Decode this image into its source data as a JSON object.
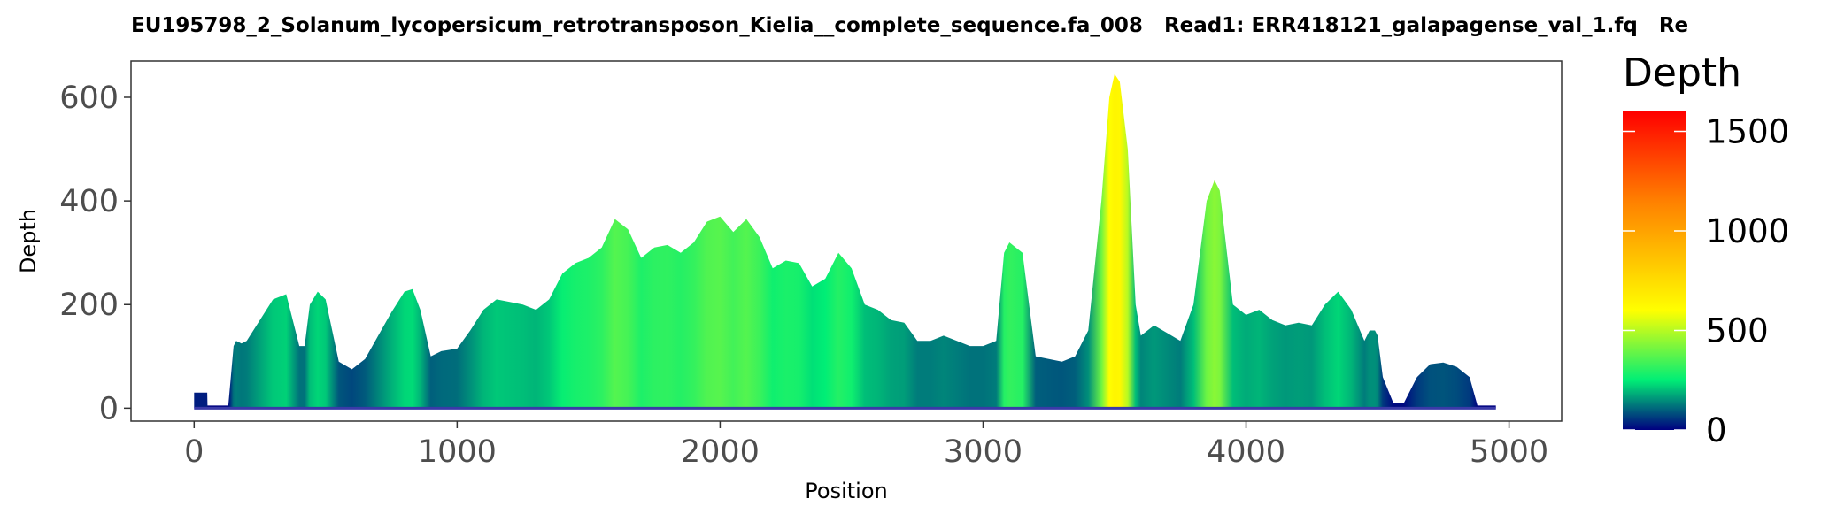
{
  "chart_data": {
    "type": "area",
    "title": "EU195798_2_Solanum_lycopersicum_retrotransposon_Kielia__complete_sequence.fa_008   Read1: ERR418121_galapagense_val_1.fq   Re",
    "xlabel": "Position",
    "ylabel": "Depth",
    "xlim": [
      -240,
      5200
    ],
    "ylim": [
      -25,
      670
    ],
    "x_ticks": [
      0,
      1000,
      2000,
      3000,
      4000,
      5000
    ],
    "x_tick_labels": [
      "0",
      "1000",
      "2000",
      "3000",
      "4000",
      "5000"
    ],
    "y_ticks": [
      0,
      200,
      400,
      600
    ],
    "y_tick_labels": [
      "0",
      "200",
      "400",
      "600"
    ],
    "grid": false,
    "legend": {
      "title": "Depth",
      "placement": "right",
      "ticks": [
        0,
        500,
        1000,
        1500
      ],
      "tick_labels": [
        "0",
        "500",
        "1000",
        "1500"
      ],
      "range": [
        0,
        1600
      ],
      "colors": [
        "#000080",
        "#00ee76",
        "#ffff00",
        "#ff8000",
        "#ff0000"
      ],
      "stops": [
        0,
        250,
        600,
        1150,
        1600
      ]
    },
    "series": [
      {
        "x": [
          0,
          50,
          51,
          130,
          150,
          160,
          180,
          200,
          250,
          300,
          350,
          400,
          420,
          440,
          470,
          500,
          550,
          600,
          650,
          700,
          750,
          800,
          830,
          860,
          900,
          940,
          1000,
          1050,
          1100,
          1150,
          1200,
          1250,
          1300,
          1350,
          1400,
          1450,
          1500,
          1550,
          1600,
          1650,
          1700,
          1750,
          1800,
          1850,
          1900,
          1950,
          2000,
          2050,
          2100,
          2150,
          2200,
          2250,
          2300,
          2350,
          2400,
          2450,
          2500,
          2550,
          2600,
          2650,
          2700,
          2750,
          2800,
          2850,
          2900,
          2950,
          3000,
          3050,
          3080,
          3100,
          3150,
          3200,
          3250,
          3300,
          3350,
          3400,
          3450,
          3480,
          3500,
          3520,
          3550,
          3580,
          3600,
          3650,
          3700,
          3750,
          3800,
          3850,
          3880,
          3900,
          3950,
          4000,
          4050,
          4100,
          4150,
          4200,
          4250,
          4300,
          4350,
          4400,
          4450,
          4470,
          4490,
          4500,
          4520,
          4560,
          4600,
          4650,
          4700,
          4750,
          4800,
          4850,
          4880,
          4950
        ],
        "values": [
          30,
          30,
          5,
          5,
          120,
          130,
          125,
          130,
          170,
          210,
          220,
          120,
          120,
          200,
          225,
          210,
          90,
          75,
          95,
          140,
          185,
          225,
          230,
          190,
          100,
          110,
          115,
          150,
          190,
          210,
          205,
          200,
          190,
          210,
          260,
          280,
          290,
          310,
          365,
          345,
          290,
          310,
          315,
          300,
          320,
          360,
          370,
          340,
          365,
          330,
          270,
          285,
          280,
          235,
          250,
          300,
          270,
          200,
          190,
          170,
          165,
          130,
          130,
          140,
          130,
          120,
          120,
          130,
          300,
          320,
          300,
          100,
          95,
          90,
          100,
          150,
          400,
          600,
          645,
          630,
          500,
          200,
          140,
          160,
          145,
          130,
          200,
          400,
          440,
          420,
          200,
          180,
          190,
          170,
          160,
          165,
          160,
          200,
          225,
          190,
          130,
          150,
          150,
          140,
          60,
          10,
          10,
          60,
          85,
          88,
          80,
          60,
          5,
          5
        ]
      }
    ]
  }
}
